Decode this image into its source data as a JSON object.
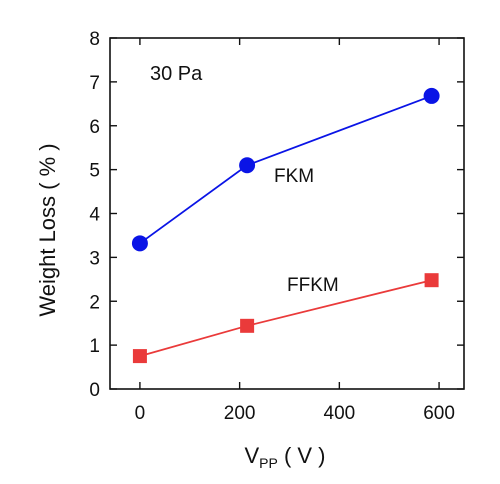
{
  "chart_data": {
    "type": "line",
    "annotation": "30 Pa",
    "xlabel": {
      "main": "V",
      "sub": "PP",
      "unit": " ( V )"
    },
    "ylabel": "Weight Loss ( % )",
    "xlim": [
      -60,
      650
    ],
    "ylim": [
      0,
      8
    ],
    "xticks": [
      0,
      200,
      400,
      600
    ],
    "yticks": [
      0,
      1,
      2,
      3,
      4,
      5,
      6,
      7,
      8
    ],
    "grid": false,
    "series": [
      {
        "name": "FKM",
        "marker": "circle",
        "color": "#0a14e6",
        "x": [
          0,
          215,
          585
        ],
        "y": [
          3.32,
          5.1,
          6.68
        ]
      },
      {
        "name": "FFKM",
        "marker": "square",
        "color": "#ea3a3a",
        "x": [
          0,
          215,
          585
        ],
        "y": [
          0.75,
          1.44,
          2.48
        ]
      }
    ]
  }
}
